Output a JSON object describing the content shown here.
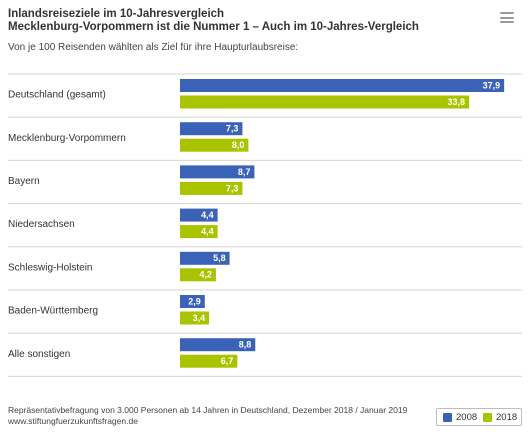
{
  "chart_data": {
    "type": "bar",
    "orientation": "horizontal",
    "title": "Inlandsreiseziele im 10-Jahresvergleich",
    "subtitle": "Mecklenburg-Vorpommern ist die Nummer 1 – Auch im 10-Jahres-Vergleich",
    "caption": "Von je 100 Reisenden wählten als Ziel für ihre Haupturlaubsreise:",
    "categories": [
      "Deutschland (gesamt)",
      "Mecklenburg-Vorpommern",
      "Bayern",
      "Niedersachsen",
      "Schleswig-Holstein",
      "Baden-Württemberg",
      "Alle sonstigen"
    ],
    "series": [
      {
        "name": "2008",
        "color": "#3a63b8",
        "values": [
          37.9,
          7.3,
          8.7,
          4.4,
          5.8,
          2.9,
          8.8
        ],
        "labels": [
          "37,9",
          "7,3",
          "8,7",
          "4,4",
          "5,8",
          "2,9",
          "8,8"
        ]
      },
      {
        "name": "2018",
        "color": "#a9c300",
        "values": [
          33.8,
          8.0,
          7.3,
          4.4,
          4.2,
          3.4,
          6.7
        ],
        "labels": [
          "33,8",
          "8,0",
          "7,3",
          "4,4",
          "4,2",
          "3,4",
          "6,7"
        ]
      }
    ],
    "xlim": [
      0,
      38
    ],
    "grid": false,
    "legend_position": "bottom-right"
  },
  "footer": {
    "source_line": "Repräsentativbefragung von 3.000 Personen ab 14 Jahren in Deutschland, Dezember 2018 / Januar 2019",
    "url": "www.stiftungfuerzukunftsfragen.de"
  },
  "icons": {
    "menu": "hamburger-menu-icon"
  }
}
